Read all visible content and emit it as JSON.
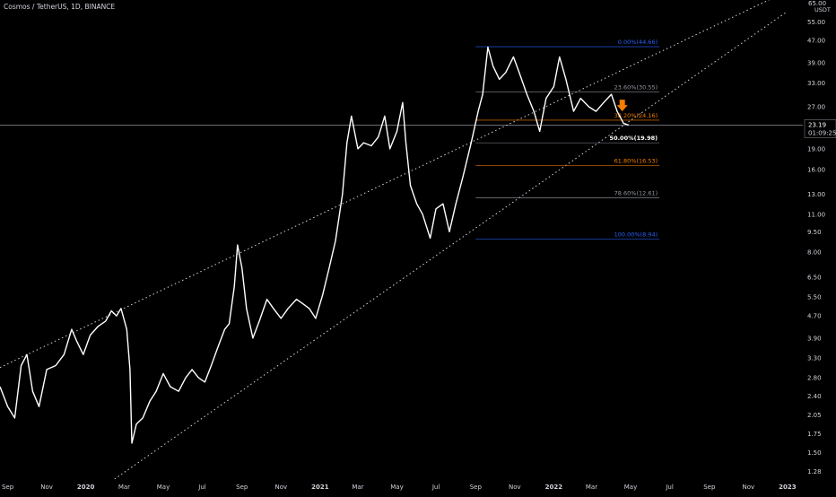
{
  "chart_data": {
    "type": "line",
    "title": "Cosmos / TetherUS, 1D, BINANCE",
    "y_axis": {
      "scale": "log",
      "unit_label": "USDT",
      "top_label": "65.00",
      "ticks": [
        "55.00",
        "47.00",
        "39.00",
        "33.00",
        "27.00",
        "23.00",
        "19.00",
        "16.00",
        "13.00",
        "11.00",
        "9.50",
        "8.00",
        "6.50",
        "5.50",
        "4.70",
        "3.90",
        "3.30",
        "2.80",
        "2.40",
        "2.05",
        "1.75",
        "1.50",
        "1.28"
      ],
      "range": [
        1.2,
        66
      ]
    },
    "x_axis": {
      "ticks": [
        "Sep",
        "Nov",
        "2020",
        "Mar",
        "May",
        "Jul",
        "Sep",
        "Nov",
        "2021",
        "Mar",
        "May",
        "Jul",
        "Sep",
        "Nov",
        "2022",
        "Mar",
        "May",
        "Jul",
        "Sep",
        "Nov",
        "2023"
      ],
      "range": [
        "2019-08-20",
        "2023-01-25"
      ]
    },
    "series": [
      {
        "color": "#ffffff",
        "points": [
          [
            "2019-08-20",
            2.6
          ],
          [
            "2019-09-01",
            2.2
          ],
          [
            "2019-09-12",
            2.0
          ],
          [
            "2019-09-22",
            3.1
          ],
          [
            "2019-10-01",
            3.4
          ],
          [
            "2019-10-10",
            2.5
          ],
          [
            "2019-10-20",
            2.2
          ],
          [
            "2019-11-01",
            3.0
          ],
          [
            "2019-11-15",
            3.1
          ],
          [
            "2019-11-28",
            3.4
          ],
          [
            "2019-12-10",
            4.2
          ],
          [
            "2019-12-18",
            3.8
          ],
          [
            "2019-12-28",
            3.4
          ],
          [
            "2020-01-08",
            4.0
          ],
          [
            "2020-01-20",
            4.3
          ],
          [
            "2020-02-01",
            4.5
          ],
          [
            "2020-02-10",
            4.9
          ],
          [
            "2020-02-18",
            4.7
          ],
          [
            "2020-02-25",
            5.0
          ],
          [
            "2020-03-05",
            4.2
          ],
          [
            "2020-03-10",
            3.0
          ],
          [
            "2020-03-13",
            1.62
          ],
          [
            "2020-03-20",
            1.9
          ],
          [
            "2020-03-30",
            2.0
          ],
          [
            "2020-04-10",
            2.3
          ],
          [
            "2020-04-20",
            2.5
          ],
          [
            "2020-05-01",
            2.9
          ],
          [
            "2020-05-12",
            2.6
          ],
          [
            "2020-05-25",
            2.5
          ],
          [
            "2020-06-05",
            2.8
          ],
          [
            "2020-06-15",
            3.0
          ],
          [
            "2020-06-25",
            2.8
          ],
          [
            "2020-07-05",
            2.7
          ],
          [
            "2020-07-15",
            3.1
          ],
          [
            "2020-07-25",
            3.6
          ],
          [
            "2020-08-05",
            4.2
          ],
          [
            "2020-08-12",
            4.4
          ],
          [
            "2020-08-20",
            6.0
          ],
          [
            "2020-08-25",
            8.5
          ],
          [
            "2020-09-01",
            7.0
          ],
          [
            "2020-09-08",
            5.0
          ],
          [
            "2020-09-18",
            3.9
          ],
          [
            "2020-09-28",
            4.5
          ],
          [
            "2020-10-10",
            5.4
          ],
          [
            "2020-10-20",
            5.0
          ],
          [
            "2020-11-01",
            4.6
          ],
          [
            "2020-11-12",
            5.0
          ],
          [
            "2020-11-25",
            5.4
          ],
          [
            "2020-12-05",
            5.2
          ],
          [
            "2020-12-15",
            5.0
          ],
          [
            "2020-12-25",
            4.6
          ],
          [
            "2021-01-05",
            5.6
          ],
          [
            "2021-01-15",
            7.0
          ],
          [
            "2021-01-25",
            8.8
          ],
          [
            "2021-02-05",
            13.0
          ],
          [
            "2021-02-12",
            20.0
          ],
          [
            "2021-02-19",
            25.0
          ],
          [
            "2021-03-01",
            19.0
          ],
          [
            "2021-03-10",
            20.0
          ],
          [
            "2021-03-22",
            19.5
          ],
          [
            "2021-04-02",
            21.0
          ],
          [
            "2021-04-12",
            25.0
          ],
          [
            "2021-04-20",
            19.0
          ],
          [
            "2021-05-01",
            22.0
          ],
          [
            "2021-05-10",
            28.0
          ],
          [
            "2021-05-15",
            20.0
          ],
          [
            "2021-05-22",
            14.0
          ],
          [
            "2021-06-01",
            12.0
          ],
          [
            "2021-06-10",
            11.0
          ],
          [
            "2021-06-22",
            9.0
          ],
          [
            "2021-07-01",
            11.5
          ],
          [
            "2021-07-12",
            12.0
          ],
          [
            "2021-07-22",
            9.5
          ],
          [
            "2021-08-01",
            12.0
          ],
          [
            "2021-08-12",
            15.0
          ],
          [
            "2021-08-25",
            20.0
          ],
          [
            "2021-09-05",
            26.0
          ],
          [
            "2021-09-12",
            30.0
          ],
          [
            "2021-09-20",
            44.5
          ],
          [
            "2021-09-28",
            38.0
          ],
          [
            "2021-10-08",
            34.0
          ],
          [
            "2021-10-18",
            36.0
          ],
          [
            "2021-10-30",
            41.0
          ],
          [
            "2021-11-08",
            36.0
          ],
          [
            "2021-11-20",
            30.0
          ],
          [
            "2021-12-01",
            26.0
          ],
          [
            "2021-12-10",
            22.0
          ],
          [
            "2021-12-20",
            29.0
          ],
          [
            "2022-01-01",
            32.0
          ],
          [
            "2022-01-10",
            41.0
          ],
          [
            "2022-01-20",
            34.0
          ],
          [
            "2022-02-01",
            26.0
          ],
          [
            "2022-02-12",
            29.0
          ],
          [
            "2022-02-25",
            27.0
          ],
          [
            "2022-03-08",
            26.0
          ],
          [
            "2022-03-20",
            28.0
          ],
          [
            "2022-04-01",
            30.0
          ],
          [
            "2022-04-10",
            26.0
          ],
          [
            "2022-04-20",
            23.5
          ],
          [
            "2022-04-28",
            23.19
          ]
        ]
      }
    ],
    "current_price": {
      "value": "23.19",
      "countdown": "01:09:25"
    },
    "fibonacci": {
      "levels": [
        {
          "label": "0.00%(44.66)",
          "price": 44.66,
          "color": "#2962ff"
        },
        {
          "label": "23.60%(30.55)",
          "price": 30.55,
          "color": "#9598a1"
        },
        {
          "label": "38.20%(24.16)",
          "price": 24.16,
          "color": "#f57c00"
        },
        {
          "label": "50.00%(19.98)",
          "price": 19.98,
          "color": "#ffffff"
        },
        {
          "label": "61.80%(16.53)",
          "price": 16.53,
          "color": "#f57c00"
        },
        {
          "label": "78.60%(12.61)",
          "price": 12.61,
          "color": "#9598a1"
        },
        {
          "label": "100.00%(8.94)",
          "price": 8.94,
          "color": "#2962ff"
        }
      ],
      "start": "2021-09-01",
      "end": "2022-06-15"
    },
    "channel": {
      "color": "#d1d4dc",
      "upper": [
        [
          "2019-08-20",
          3.05
        ],
        [
          "2022-12-20",
          69.0
        ]
      ],
      "lower": [
        [
          "2020-02-15",
          1.2
        ],
        [
          "2023-01-01",
          60.0
        ]
      ]
    },
    "annotation": {
      "type": "down-arrow",
      "date": "2022-04-18",
      "price": 27.0,
      "color": "#f57c00"
    },
    "grid": false,
    "legend": "none",
    "colors": {
      "background": "#000000",
      "axis_text": "#d1d4dc",
      "price_line": "#ffffff",
      "accent": "#f57c00"
    }
  }
}
